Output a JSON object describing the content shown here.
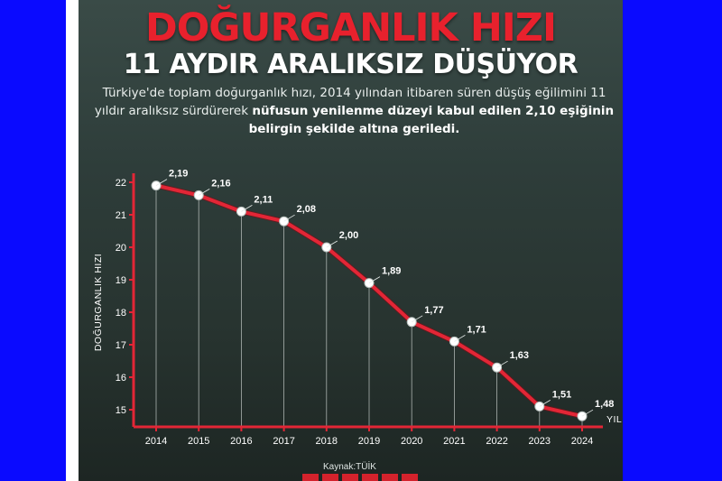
{
  "header": {
    "title_line1": "DOĞURGANLIK HIZI",
    "title_line2": "11 AYDIR ARALIKSIZ DÜŞÜYOR",
    "desc_part1": "Türkiye'de toplam doğurganlık hızı, 2014 yılından itibaren süren düşüş eğilimini 11 yıldır aralıksız sürdürerek ",
    "desc_bold": "nüfusun yenilenme düzeyi kabul edilen 2,10 eşiğinin belirgin şekilde altına geriledi."
  },
  "source": "Kaynak:TÜİK",
  "colors": {
    "accent": "#e8212d",
    "line": "#e32636",
    "background": "#2e3d3a",
    "frame": "#0a0aff"
  },
  "chart_data": {
    "type": "line",
    "categories": [
      "2014",
      "2015",
      "2016",
      "2017",
      "2018",
      "2019",
      "2020",
      "2021",
      "2022",
      "2023",
      "2024"
    ],
    "values": [
      2.19,
      2.16,
      2.11,
      2.08,
      2.0,
      1.89,
      1.77,
      1.71,
      1.63,
      1.51,
      1.48
    ],
    "data_labels": [
      "2,19",
      "2,16",
      "2,11",
      "2,08",
      "2,00",
      "1,89",
      "1,77",
      "1,71",
      "1,63",
      "1,51",
      "1,48"
    ],
    "y_ticks": [
      "15",
      "16",
      "17",
      "18",
      "19",
      "20",
      "21",
      "22"
    ],
    "y_tick_values": [
      1.5,
      1.6,
      1.7,
      1.8,
      1.9,
      2.0,
      2.1,
      2.2
    ],
    "ylim": [
      1.45,
      2.22
    ],
    "ylabel": "DOĞURGANLIK HIZI",
    "xlabel": "YIL",
    "grid": false
  }
}
